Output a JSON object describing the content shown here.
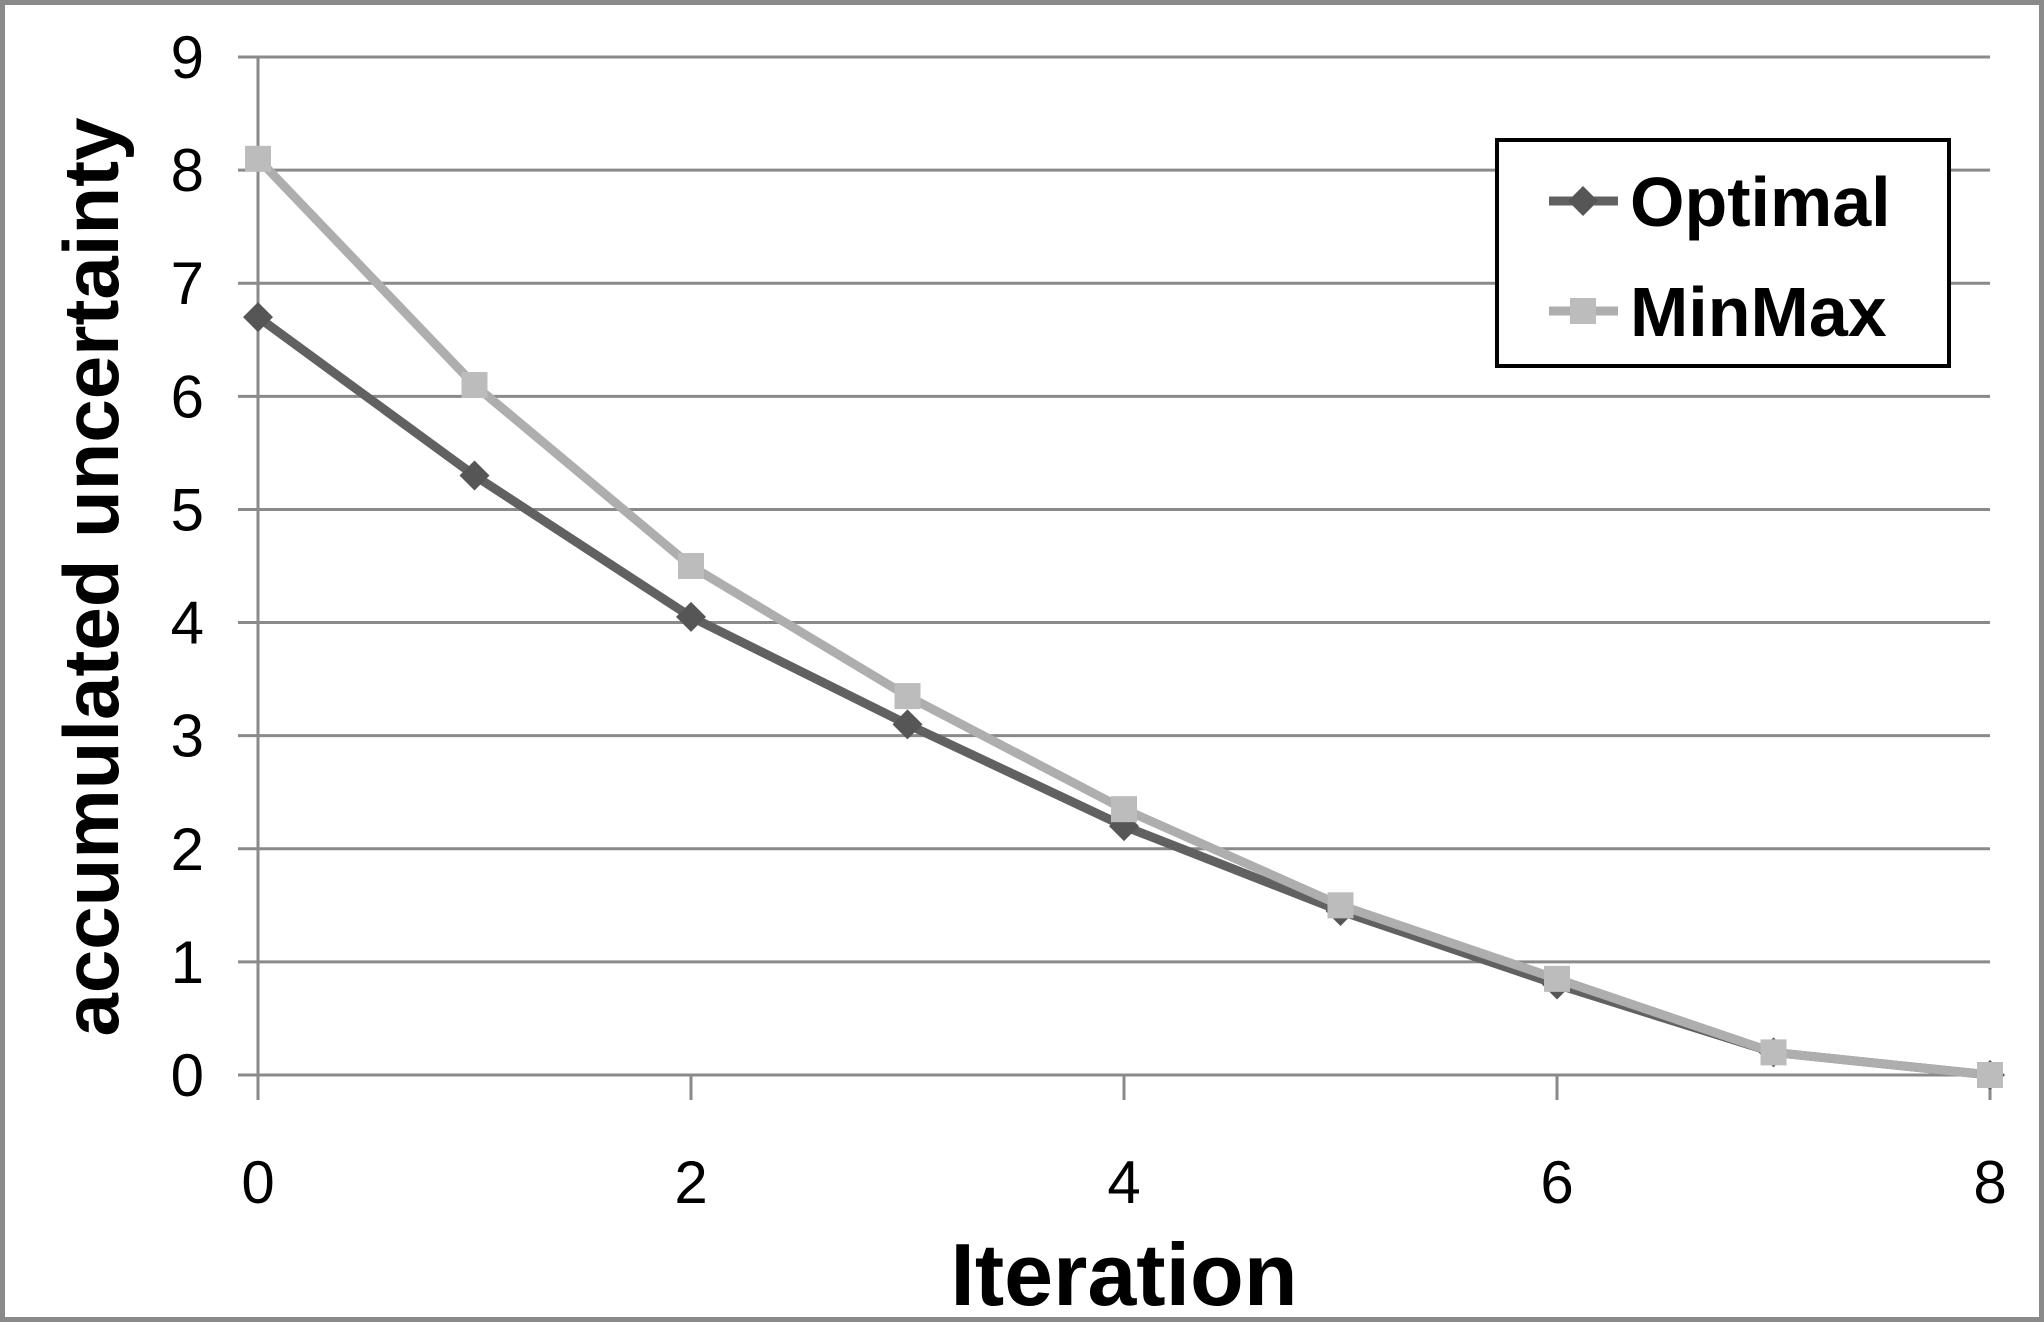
{
  "chart_data": {
    "type": "line",
    "title": "",
    "xlabel": "Iteration",
    "ylabel": "accumulated uncertainty",
    "x": [
      0,
      1,
      2,
      3,
      4,
      5,
      6,
      7,
      8
    ],
    "series": [
      {
        "name": "Optimal",
        "marker": "diamond",
        "line_color": "#616161",
        "marker_color": "#565656",
        "values": [
          6.7,
          5.3,
          4.05,
          3.1,
          2.2,
          1.45,
          0.8,
          0.2,
          0.0
        ]
      },
      {
        "name": "MinMax",
        "marker": "square",
        "line_color": "#aeaeae",
        "marker_color": "#bcbcbc",
        "values": [
          8.1,
          6.1,
          4.5,
          3.35,
          2.35,
          1.5,
          0.85,
          0.2,
          0.0
        ]
      }
    ],
    "xlim": [
      0,
      8
    ],
    "ylim": [
      0,
      9
    ],
    "x_ticks": [
      0,
      2,
      4,
      6,
      8
    ],
    "y_ticks": [
      0,
      1,
      2,
      3,
      4,
      5,
      6,
      7,
      8,
      9
    ],
    "grid": "horizontal-only",
    "legend_position": "top-right"
  },
  "colors": {
    "background": "#ffffff",
    "gridline": "#8a8a8a",
    "axis": "#8a8a8a",
    "text": "#000000",
    "frame_border": "#8a8a8a",
    "legend_border": "#000000",
    "legend_fill": "#ffffff"
  }
}
